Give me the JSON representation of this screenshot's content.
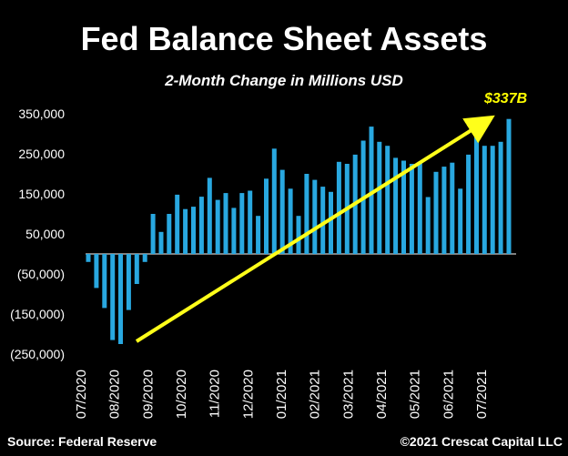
{
  "title": "Fed Balance Sheet Assets",
  "subtitle": "2-Month Change in Millions USD",
  "source": "Source: Federal Reserve",
  "copyright": "©2021 Crescat Capital LLC",
  "colors": {
    "bars": "#29a8e0",
    "trend": "#ffff1a",
    "callout": "#ffff00",
    "background": "#000000",
    "text": "#ffffff"
  },
  "chart_data": {
    "type": "bar",
    "y_tick_labels": [
      "350,000",
      "250,000",
      "150,000",
      "50,000",
      "(50,000)",
      "(150,000)",
      "(250,000)"
    ],
    "y_tick_values": [
      350000,
      250000,
      150000,
      50000,
      -50000,
      -150000,
      -250000
    ],
    "x_tick_labels": [
      "07/2020",
      "08/2020",
      "09/2020",
      "10/2020",
      "11/2020",
      "12/2020",
      "01/2021",
      "02/2021",
      "03/2021",
      "04/2021",
      "05/2021",
      "06/2021",
      "07/2021"
    ],
    "ylim": [
      -250000,
      375000
    ],
    "values": [
      -20000,
      -85000,
      -135000,
      -215000,
      -225000,
      -140000,
      -75000,
      -20000,
      100000,
      55000,
      100000,
      148000,
      112000,
      118000,
      143000,
      190000,
      135000,
      152000,
      115000,
      152000,
      158000,
      95000,
      188000,
      263000,
      210000,
      163000,
      95000,
      200000,
      185000,
      168000,
      155000,
      230000,
      225000,
      248000,
      283000,
      318000,
      280000,
      270000,
      240000,
      233000,
      225000,
      230000,
      142000,
      205000,
      218000,
      228000,
      163000,
      248000,
      325000,
      270000,
      270000,
      280000,
      337000
    ],
    "annotations": [
      {
        "text": "$337B",
        "style": "arrow-trend"
      }
    ],
    "grid": false,
    "legend": "none"
  }
}
